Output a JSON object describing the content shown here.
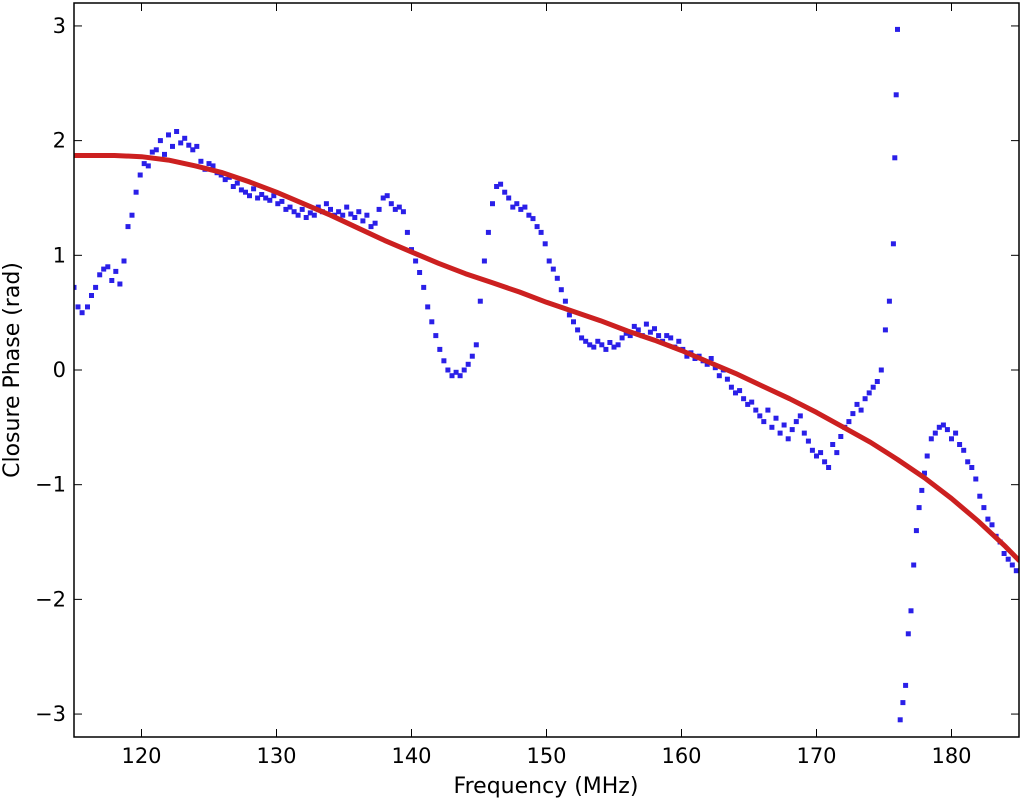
{
  "chart_data": {
    "type": "scatter",
    "title": "",
    "xlabel": "Frequency (MHz)",
    "ylabel": "Closure Phase (rad)",
    "xlim": [
      115,
      185
    ],
    "ylim": [
      -3.2,
      3.2
    ],
    "xticks": [
      120,
      130,
      140,
      150,
      160,
      170,
      180
    ],
    "yticks": [
      -3,
      -2,
      -1,
      0,
      1,
      2,
      3
    ],
    "ytick_labels": [
      "−3",
      "−2",
      "−1",
      "0",
      "1",
      "2",
      "3"
    ],
    "grid": false,
    "legend": "none",
    "series": [
      {
        "kind": "scatter",
        "color": "#2a1fe8",
        "points": [
          [
            115.0,
            0.72
          ],
          [
            115.3,
            0.55
          ],
          [
            115.6,
            0.5
          ],
          [
            116.0,
            0.55
          ],
          [
            116.3,
            0.65
          ],
          [
            116.6,
            0.72
          ],
          [
            116.9,
            0.83
          ],
          [
            117.2,
            0.88
          ],
          [
            117.5,
            0.9
          ],
          [
            117.8,
            0.78
          ],
          [
            118.1,
            0.86
          ],
          [
            118.4,
            0.75
          ],
          [
            118.7,
            0.95
          ],
          [
            119.0,
            1.25
          ],
          [
            119.3,
            1.35
          ],
          [
            119.6,
            1.55
          ],
          [
            119.9,
            1.7
          ],
          [
            120.2,
            1.8
          ],
          [
            120.5,
            1.78
          ],
          [
            120.8,
            1.9
          ],
          [
            121.1,
            1.92
          ],
          [
            121.4,
            2.0
          ],
          [
            121.7,
            1.88
          ],
          [
            122.0,
            2.05
          ],
          [
            122.3,
            1.95
          ],
          [
            122.6,
            2.08
          ],
          [
            122.9,
            1.98
          ],
          [
            123.2,
            2.02
          ],
          [
            123.5,
            1.96
          ],
          [
            123.8,
            1.92
          ],
          [
            124.1,
            1.95
          ],
          [
            124.4,
            1.82
          ],
          [
            124.7,
            1.75
          ],
          [
            125.0,
            1.8
          ],
          [
            125.3,
            1.78
          ],
          [
            125.6,
            1.72
          ],
          [
            125.9,
            1.7
          ],
          [
            126.2,
            1.66
          ],
          [
            126.5,
            1.68
          ],
          [
            126.8,
            1.6
          ],
          [
            127.1,
            1.63
          ],
          [
            127.4,
            1.57
          ],
          [
            127.7,
            1.55
          ],
          [
            128.0,
            1.52
          ],
          [
            128.3,
            1.58
          ],
          [
            128.6,
            1.5
          ],
          [
            128.9,
            1.53
          ],
          [
            129.2,
            1.5
          ],
          [
            129.5,
            1.48
          ],
          [
            129.8,
            1.52
          ],
          [
            130.1,
            1.45
          ],
          [
            130.4,
            1.47
          ],
          [
            130.7,
            1.4
          ],
          [
            131.0,
            1.42
          ],
          [
            131.3,
            1.38
          ],
          [
            131.6,
            1.35
          ],
          [
            131.9,
            1.4
          ],
          [
            132.2,
            1.33
          ],
          [
            132.5,
            1.37
          ],
          [
            132.8,
            1.35
          ],
          [
            133.1,
            1.42
          ],
          [
            133.4,
            1.38
          ],
          [
            133.7,
            1.45
          ],
          [
            134.0,
            1.4
          ],
          [
            134.3,
            1.35
          ],
          [
            134.6,
            1.38
          ],
          [
            134.9,
            1.35
          ],
          [
            135.2,
            1.42
          ],
          [
            135.5,
            1.36
          ],
          [
            135.8,
            1.33
          ],
          [
            136.1,
            1.38
          ],
          [
            136.4,
            1.3
          ],
          [
            136.7,
            1.35
          ],
          [
            137.0,
            1.25
          ],
          [
            137.3,
            1.28
          ],
          [
            137.6,
            1.4
          ],
          [
            137.9,
            1.5
          ],
          [
            138.2,
            1.52
          ],
          [
            138.5,
            1.45
          ],
          [
            138.8,
            1.4
          ],
          [
            139.1,
            1.42
          ],
          [
            139.4,
            1.38
          ],
          [
            139.7,
            1.2
          ],
          [
            140.0,
            1.05
          ],
          [
            140.3,
            0.95
          ],
          [
            140.6,
            0.85
          ],
          [
            140.9,
            0.72
          ],
          [
            141.2,
            0.55
          ],
          [
            141.5,
            0.42
          ],
          [
            141.8,
            0.3
          ],
          [
            142.1,
            0.18
          ],
          [
            142.4,
            0.08
          ],
          [
            142.7,
            0.0
          ],
          [
            143.0,
            -0.05
          ],
          [
            143.3,
            -0.02
          ],
          [
            143.6,
            -0.05
          ],
          [
            143.9,
            0.0
          ],
          [
            144.2,
            0.05
          ],
          [
            144.5,
            0.12
          ],
          [
            144.8,
            0.22
          ],
          [
            145.1,
            0.6
          ],
          [
            145.4,
            0.95
          ],
          [
            145.7,
            1.2
          ],
          [
            146.0,
            1.45
          ],
          [
            146.3,
            1.6
          ],
          [
            146.6,
            1.62
          ],
          [
            146.9,
            1.55
          ],
          [
            147.2,
            1.5
          ],
          [
            147.5,
            1.42
          ],
          [
            147.8,
            1.45
          ],
          [
            148.1,
            1.4
          ],
          [
            148.4,
            1.42
          ],
          [
            148.7,
            1.35
          ],
          [
            149.0,
            1.32
          ],
          [
            149.3,
            1.25
          ],
          [
            149.6,
            1.2
          ],
          [
            149.9,
            1.1
          ],
          [
            150.2,
            0.95
          ],
          [
            150.5,
            0.88
          ],
          [
            150.8,
            0.8
          ],
          [
            151.1,
            0.7
          ],
          [
            151.4,
            0.6
          ],
          [
            151.7,
            0.48
          ],
          [
            152.0,
            0.42
          ],
          [
            152.3,
            0.35
          ],
          [
            152.6,
            0.28
          ],
          [
            152.9,
            0.25
          ],
          [
            153.2,
            0.22
          ],
          [
            153.5,
            0.2
          ],
          [
            153.8,
            0.25
          ],
          [
            154.1,
            0.22
          ],
          [
            154.4,
            0.18
          ],
          [
            154.7,
            0.24
          ],
          [
            155.0,
            0.2
          ],
          [
            155.3,
            0.22
          ],
          [
            155.6,
            0.28
          ],
          [
            155.9,
            0.32
          ],
          [
            156.2,
            0.3
          ],
          [
            156.5,
            0.38
          ],
          [
            156.8,
            0.35
          ],
          [
            157.1,
            0.3
          ],
          [
            157.4,
            0.4
          ],
          [
            157.7,
            0.33
          ],
          [
            158.0,
            0.36
          ],
          [
            158.3,
            0.3
          ],
          [
            158.6,
            0.25
          ],
          [
            158.9,
            0.3
          ],
          [
            159.2,
            0.28
          ],
          [
            159.5,
            0.2
          ],
          [
            159.8,
            0.25
          ],
          [
            160.1,
            0.18
          ],
          [
            160.4,
            0.12
          ],
          [
            160.7,
            0.15
          ],
          [
            161.0,
            0.1
          ],
          [
            161.3,
            0.12
          ],
          [
            161.6,
            0.08
          ],
          [
            161.9,
            0.05
          ],
          [
            162.2,
            0.1
          ],
          [
            162.5,
            0.02
          ],
          [
            162.8,
            -0.05
          ],
          [
            163.1,
            0.0
          ],
          [
            163.4,
            -0.08
          ],
          [
            163.7,
            -0.15
          ],
          [
            164.0,
            -0.2
          ],
          [
            164.3,
            -0.18
          ],
          [
            164.6,
            -0.25
          ],
          [
            164.9,
            -0.3
          ],
          [
            165.2,
            -0.28
          ],
          [
            165.5,
            -0.35
          ],
          [
            165.8,
            -0.4
          ],
          [
            166.1,
            -0.45
          ],
          [
            166.4,
            -0.35
          ],
          [
            166.7,
            -0.5
          ],
          [
            167.0,
            -0.42
          ],
          [
            167.3,
            -0.55
          ],
          [
            167.6,
            -0.48
          ],
          [
            167.9,
            -0.6
          ],
          [
            168.2,
            -0.52
          ],
          [
            168.5,
            -0.45
          ],
          [
            168.8,
            -0.4
          ],
          [
            169.1,
            -0.55
          ],
          [
            169.4,
            -0.62
          ],
          [
            169.7,
            -0.7
          ],
          [
            170.0,
            -0.75
          ],
          [
            170.3,
            -0.72
          ],
          [
            170.6,
            -0.8
          ],
          [
            170.9,
            -0.85
          ],
          [
            171.2,
            -0.65
          ],
          [
            171.5,
            -0.72
          ],
          [
            171.8,
            -0.58
          ],
          [
            172.1,
            -0.5
          ],
          [
            172.4,
            -0.45
          ],
          [
            172.7,
            -0.38
          ],
          [
            173.0,
            -0.3
          ],
          [
            173.3,
            -0.35
          ],
          [
            173.6,
            -0.25
          ],
          [
            173.9,
            -0.2
          ],
          [
            174.2,
            -0.15
          ],
          [
            174.5,
            -0.1
          ],
          [
            174.8,
            0.0
          ],
          [
            175.1,
            0.35
          ],
          [
            175.4,
            0.6
          ],
          [
            175.7,
            1.1
          ],
          [
            175.8,
            1.85
          ],
          [
            175.9,
            2.4
          ],
          [
            176.0,
            2.97
          ],
          [
            176.2,
            -3.05
          ],
          [
            176.4,
            -2.9
          ],
          [
            176.6,
            -2.75
          ],
          [
            176.8,
            -2.3
          ],
          [
            177.0,
            -2.1
          ],
          [
            177.2,
            -1.7
          ],
          [
            177.4,
            -1.4
          ],
          [
            177.6,
            -1.2
          ],
          [
            177.8,
            -1.05
          ],
          [
            178.0,
            -0.9
          ],
          [
            178.2,
            -0.75
          ],
          [
            178.5,
            -0.6
          ],
          [
            178.8,
            -0.55
          ],
          [
            179.1,
            -0.5
          ],
          [
            179.4,
            -0.48
          ],
          [
            179.7,
            -0.52
          ],
          [
            180.0,
            -0.6
          ],
          [
            180.3,
            -0.55
          ],
          [
            180.6,
            -0.65
          ],
          [
            180.9,
            -0.7
          ],
          [
            181.2,
            -0.8
          ],
          [
            181.5,
            -0.85
          ],
          [
            181.8,
            -0.95
          ],
          [
            182.1,
            -1.1
          ],
          [
            182.4,
            -1.2
          ],
          [
            182.7,
            -1.3
          ],
          [
            183.0,
            -1.35
          ],
          [
            183.3,
            -1.45
          ],
          [
            183.6,
            -1.5
          ],
          [
            183.9,
            -1.6
          ],
          [
            184.2,
            -1.65
          ],
          [
            184.5,
            -1.7
          ],
          [
            184.8,
            -1.75
          ]
        ]
      },
      {
        "kind": "line",
        "color": "#cc2020",
        "points": [
          [
            115,
            1.87
          ],
          [
            118,
            1.87
          ],
          [
            120,
            1.86
          ],
          [
            122,
            1.83
          ],
          [
            124,
            1.78
          ],
          [
            126,
            1.72
          ],
          [
            128,
            1.64
          ],
          [
            130,
            1.55
          ],
          [
            132,
            1.45
          ],
          [
            134,
            1.35
          ],
          [
            136,
            1.24
          ],
          [
            138,
            1.13
          ],
          [
            140,
            1.03
          ],
          [
            142,
            0.93
          ],
          [
            144,
            0.84
          ],
          [
            146,
            0.76
          ],
          [
            148,
            0.68
          ],
          [
            150,
            0.59
          ],
          [
            152,
            0.51
          ],
          [
            154,
            0.43
          ],
          [
            156,
            0.34
          ],
          [
            158,
            0.26
          ],
          [
            160,
            0.17
          ],
          [
            162,
            0.07
          ],
          [
            164,
            -0.03
          ],
          [
            166,
            -0.14
          ],
          [
            168,
            -0.25
          ],
          [
            170,
            -0.37
          ],
          [
            172,
            -0.5
          ],
          [
            174,
            -0.63
          ],
          [
            176,
            -0.78
          ],
          [
            178,
            -0.94
          ],
          [
            180,
            -1.12
          ],
          [
            182,
            -1.32
          ],
          [
            184,
            -1.54
          ],
          [
            185,
            -1.66
          ]
        ]
      }
    ]
  }
}
